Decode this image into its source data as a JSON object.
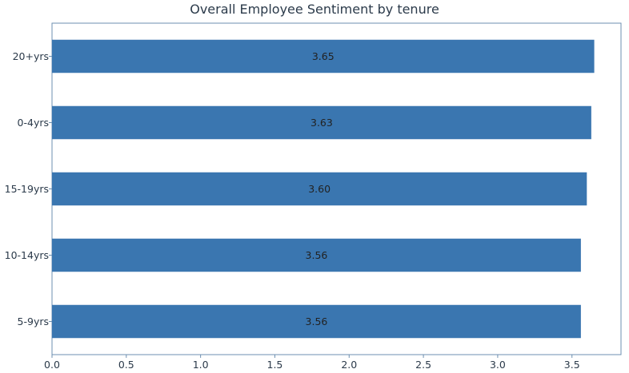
{
  "chart_data": {
    "type": "bar",
    "orientation": "horizontal",
    "title": "Overall Employee Sentiment by tenure",
    "xlabel": "",
    "ylabel": "",
    "categories": [
      "20+yrs",
      "0-4yrs",
      "15-19yrs",
      "10-14yrs",
      "5-9yrs"
    ],
    "values": [
      3.65,
      3.63,
      3.6,
      3.56,
      3.56
    ],
    "data_labels": [
      "3.65",
      "3.63",
      "3.60",
      "3.56",
      "3.56"
    ],
    "xlim": [
      0,
      3.83
    ],
    "xticks": [
      0.0,
      0.5,
      1.0,
      1.5,
      2.0,
      2.5,
      3.0,
      3.5
    ],
    "xtick_labels": [
      "0.0",
      "0.5",
      "1.0",
      "1.5",
      "2.0",
      "2.5",
      "3.0",
      "3.5"
    ],
    "grid": false,
    "legend": "none",
    "colors": {
      "bar": "#3a76b0",
      "axis": "#6d8fb0",
      "text": "#2b3a4a"
    }
  }
}
